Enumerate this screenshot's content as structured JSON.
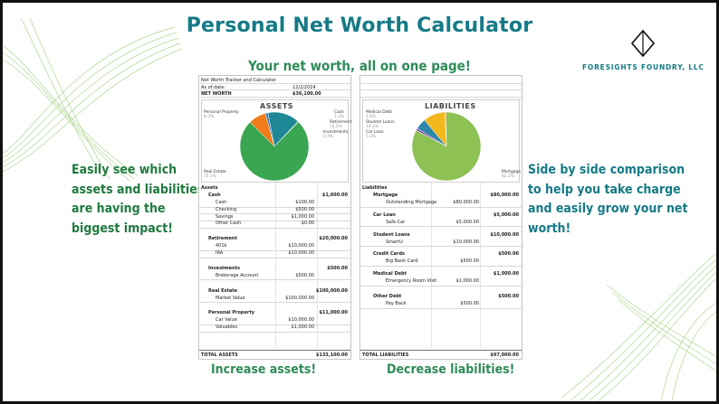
{
  "title": "Personal Net Worth Calculator",
  "tagline": "Your net worth, all on one page!",
  "brand": {
    "name": "FORESIGHTS FOUNDRY, LLC"
  },
  "left_blurb": [
    "Easily see which",
    "assets and liabilities",
    "are having the",
    "biggest impact!"
  ],
  "right_blurb": [
    "Side by side comparison",
    "to help you take charge",
    "and easily grow your net",
    "worth!"
  ],
  "captions": {
    "assets": "Increase assets!",
    "liabilities": "Decrease liabilities!"
  },
  "colors": {
    "title": "#157a86",
    "green_text": "#2e8b57",
    "deco_lines": "#9fd07e"
  },
  "sheet": {
    "header": {
      "title": "Net Worth Tracker and Calculator",
      "date_label": "As of date:",
      "date": "12/2/2024",
      "networth_label": "NET WORTH",
      "networth": "$36,100.00"
    },
    "assets_chart": {
      "title": "ASSETS",
      "slices": [
        {
          "name": "Personal Property",
          "pct": "8.3%",
          "value": 11000,
          "color": "#f07d1a"
        },
        {
          "name": "Cash",
          "pct": "1.2%",
          "value": 1600,
          "color": "#3a73b8"
        },
        {
          "name": "Retirement",
          "pct": "15.0%",
          "value": 20000,
          "color": "#1f8896"
        },
        {
          "name": "Investments",
          "pct": "0.4%",
          "value": 500,
          "color": "#7ab648"
        },
        {
          "name": "Real Estate",
          "pct": "75.1%",
          "value": 100000,
          "color": "#3aa651"
        }
      ]
    },
    "liab_chart": {
      "title": "LIABILITIES",
      "slices": [
        {
          "name": "Medical Debt",
          "pct": "1.0%",
          "value": 1000,
          "color": "#8e44ad"
        },
        {
          "name": "Student Loans",
          "pct": "10.3%",
          "value": 10000,
          "color": "#f1b71c"
        },
        {
          "name": "Credit Cards",
          "pct": "0.5%",
          "value": 500,
          "color": "#e67e22"
        },
        {
          "name": "Car Loan",
          "pct": "5.2%",
          "value": 5000,
          "color": "#2e86ab"
        },
        {
          "name": "Mortgage",
          "pct": "82.5%",
          "value": 80000,
          "color": "#8dc153"
        }
      ]
    },
    "assets": {
      "heading": "Assets",
      "groups": [
        {
          "name": "Cash",
          "total": "$1,600.00",
          "items": [
            {
              "name": "Cash",
              "value": "$100.00"
            },
            {
              "name": "Checking",
              "value": "$500.00"
            },
            {
              "name": "Savings",
              "value": "$1,000.00"
            },
            {
              "name": "Other Cash",
              "value": "$0.00"
            }
          ]
        },
        {
          "name": "Retirement",
          "total": "$20,000.00",
          "items": [
            {
              "name": "401k",
              "value": "$10,000.00"
            },
            {
              "name": "IRA",
              "value": "$10,000.00"
            }
          ]
        },
        {
          "name": "Investments",
          "total": "$500.00",
          "items": [
            {
              "name": "Brokerage Account",
              "value": "$500.00"
            }
          ]
        },
        {
          "name": "Real Estate",
          "total": "$100,000.00",
          "items": [
            {
              "name": "Market Value",
              "value": "$100,000.00"
            }
          ]
        },
        {
          "name": "Personal Property",
          "total": "$11,000.00",
          "items": [
            {
              "name": "Car Value",
              "value": "$10,000.00"
            },
            {
              "name": "Valuables",
              "value": "$1,000.00"
            }
          ]
        }
      ],
      "total_label": "TOTAL ASSETS",
      "total": "$133,100.00"
    },
    "liabilities": {
      "heading": "Liabilities",
      "groups": [
        {
          "name": "Mortgage",
          "total": "$80,000.00",
          "items": [
            {
              "name": "Outstanding Mortgage",
              "value": "$80,000.00"
            }
          ]
        },
        {
          "name": "Car Loan",
          "total": "$5,000.00",
          "items": [
            {
              "name": "Safe Car",
              "value": "$5,000.00"
            }
          ]
        },
        {
          "name": "Student Loans",
          "total": "$10,000.00",
          "items": [
            {
              "name": "SmartU",
              "value": "$10,000.00"
            }
          ]
        },
        {
          "name": "Credit Cards",
          "total": "$500.00",
          "items": [
            {
              "name": "Big Bank Card",
              "value": "$500.00"
            }
          ]
        },
        {
          "name": "Medical Debt",
          "total": "$1,000.00",
          "items": [
            {
              "name": "Emergency Room Visit",
              "value": "$1,000.00"
            }
          ]
        },
        {
          "name": "Other Debt",
          "total": "$500.00",
          "items": [
            {
              "name": "Pay Back",
              "value": "$500.00"
            }
          ]
        }
      ],
      "total_label": "TOTAL LIABILITIES",
      "total": "$97,000.00"
    }
  }
}
